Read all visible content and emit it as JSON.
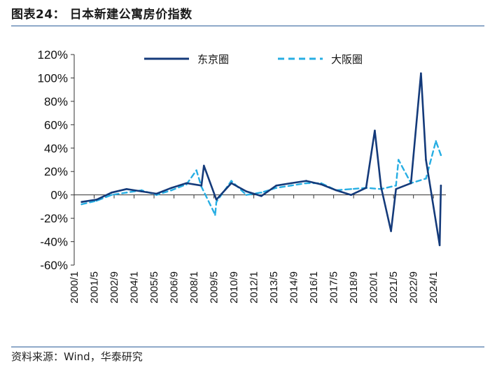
{
  "figure": {
    "title": "图表24：  日本新建公寓房价指数",
    "source": "资料来源：Wind，华泰研究"
  },
  "colors": {
    "tokyo": "#143a7a",
    "osaka": "#27aee3",
    "rule": "#8fa9c9"
  },
  "chart_data": {
    "type": "line",
    "title": "",
    "xlabel": "",
    "ylabel": "",
    "ylim": [
      -60,
      120
    ],
    "yticks": [
      -60,
      -40,
      -20,
      0,
      20,
      40,
      60,
      80,
      100,
      120
    ],
    "ytick_labels": [
      "-60%",
      "-40%",
      "-20%",
      "0%",
      "20%",
      "40%",
      "60%",
      "80%",
      "100%",
      "120%"
    ],
    "x_unit": "month",
    "x_start": "2000/1",
    "x_end": "2024/11",
    "xtick_labels": [
      "2000/1",
      "2001/5",
      "2002/9",
      "2004/1",
      "2005/5",
      "2006/9",
      "2008/1",
      "2009/5",
      "2010/9",
      "2012/1",
      "2013/5",
      "2014/9",
      "2016/1",
      "2017/5",
      "2018/9",
      "2020/1",
      "2021/5",
      "2022/9",
      "2024/1"
    ],
    "grid": false,
    "legend": "top",
    "series_granularity": "yearly values read from the chart (monthly noise not reproduced)",
    "x": [
      "2000",
      "2001",
      "2002",
      "2003",
      "2004",
      "2005",
      "2006",
      "2007",
      "2008",
      "2009",
      "2010",
      "2011",
      "2012",
      "2013",
      "2014",
      "2015",
      "2016",
      "2017",
      "2018",
      "2019",
      "2020",
      "2021",
      "2022",
      "2023",
      "2024"
    ],
    "series": [
      {
        "name": "东京圈",
        "style": "solid",
        "values": [
          -6,
          -4,
          2,
          5,
          3,
          1,
          6,
          10,
          8,
          -4,
          10,
          3,
          -1,
          8,
          10,
          12,
          9,
          4,
          0,
          6,
          7,
          5,
          10,
          30,
          8
        ],
        "highlights": [
          {
            "x": "2008/9",
            "y": 25
          },
          {
            "x": "2020/2",
            "y": 55
          },
          {
            "x": "2021/3",
            "y": -31
          },
          {
            "x": "2023/3",
            "y": 104
          },
          {
            "x": "2024/6",
            "y": -43
          }
        ]
      },
      {
        "name": "大阪圈",
        "style": "dashed",
        "values": [
          -8,
          -5,
          0,
          2,
          4,
          0,
          4,
          9,
          7,
          -6,
          12,
          0,
          2,
          6,
          8,
          10,
          10,
          4,
          5,
          6,
          5,
          8,
          10,
          14,
          34
        ],
        "highlights": [
          {
            "x": "2008/3",
            "y": 21
          },
          {
            "x": "2009/6",
            "y": -17
          },
          {
            "x": "2021/9",
            "y": 30
          },
          {
            "x": "2024/3",
            "y": 46
          }
        ]
      }
    ]
  }
}
